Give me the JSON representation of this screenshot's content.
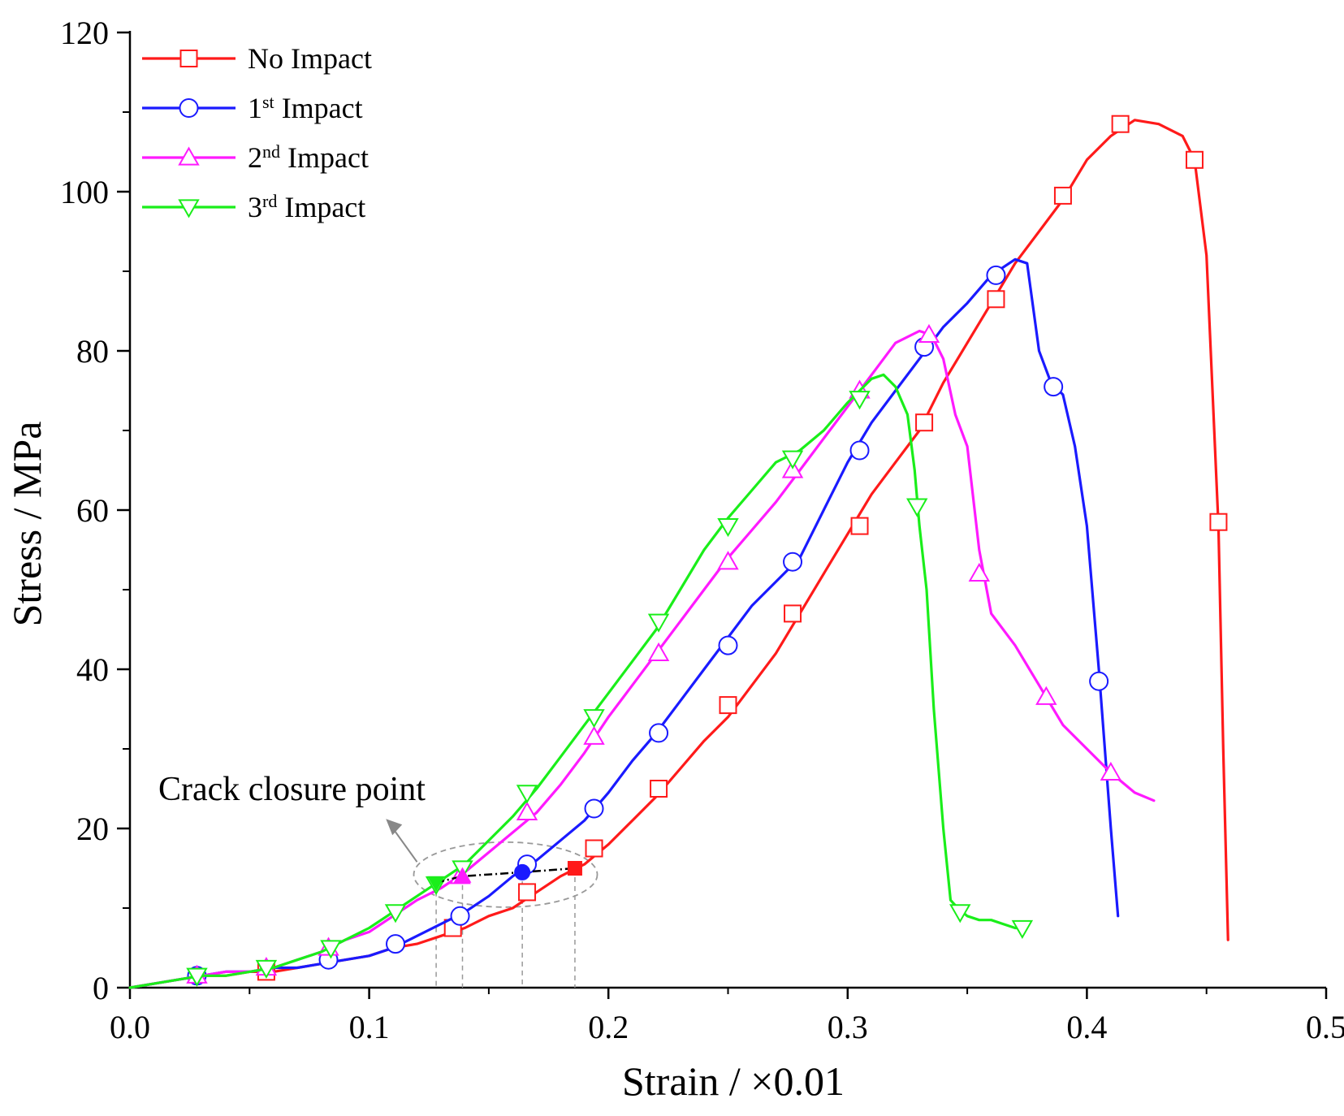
{
  "chart_data": {
    "type": "line",
    "xlabel": "Strain / ×0.01",
    "ylabel": "Stress / MPa",
    "xlim": [
      0,
      0.5
    ],
    "ylim": [
      0,
      120
    ],
    "xticks": [
      0.0,
      0.1,
      0.2,
      0.3,
      0.4,
      0.5
    ],
    "xtick_labels": [
      "0.0",
      "0.1",
      "0.2",
      "0.3",
      "0.4",
      "0.5"
    ],
    "yticks": [
      0,
      20,
      40,
      60,
      80,
      100,
      120
    ],
    "ytick_labels": [
      "0",
      "20",
      "40",
      "60",
      "80",
      "100",
      "120"
    ],
    "legend_position": "top-left",
    "series": [
      {
        "name": "No Impact",
        "legend_label": "No Impact",
        "color": "#ff1a1a",
        "marker": "square",
        "x": [
          0,
          0.01,
          0.02,
          0.03,
          0.04,
          0.05,
          0.06,
          0.07,
          0.08,
          0.09,
          0.1,
          0.11,
          0.12,
          0.13,
          0.14,
          0.15,
          0.16,
          0.17,
          0.18,
          0.19,
          0.2,
          0.21,
          0.22,
          0.23,
          0.24,
          0.25,
          0.26,
          0.27,
          0.28,
          0.29,
          0.3,
          0.31,
          0.32,
          0.33,
          0.34,
          0.35,
          0.36,
          0.37,
          0.38,
          0.39,
          0.4,
          0.41,
          0.42,
          0.43,
          0.44,
          0.445,
          0.45,
          0.455,
          0.457,
          0.459
        ],
        "y": [
          0,
          0.5,
          1,
          1.5,
          1.5,
          2,
          2,
          2.5,
          3,
          3.5,
          4,
          5,
          5.5,
          6.5,
          7.5,
          9,
          10,
          12,
          14,
          15.5,
          18,
          21,
          24,
          27.5,
          31,
          34,
          38,
          42,
          47,
          52,
          57,
          62,
          66,
          70,
          76,
          81,
          86,
          91,
          95,
          99,
          104,
          107,
          109,
          108.5,
          107,
          104,
          92,
          58,
          30,
          6
        ],
        "marker_x": [
          0.057,
          0.135,
          0.166,
          0.194,
          0.221,
          0.25,
          0.277,
          0.305,
          0.332,
          0.362,
          0.39,
          0.414,
          0.445,
          0.455
        ],
        "marker_y": [
          2,
          7.5,
          12,
          17.5,
          25,
          35.5,
          47,
          58,
          71,
          86.5,
          99.5,
          108.5,
          104,
          58.5
        ]
      },
      {
        "name": "1st Impact",
        "legend_label": "1",
        "legend_sup": "st",
        "legend_suffix": " Impact",
        "color": "#1a1aff",
        "marker": "circle",
        "x": [
          0,
          0.01,
          0.02,
          0.03,
          0.04,
          0.05,
          0.06,
          0.07,
          0.08,
          0.09,
          0.1,
          0.11,
          0.12,
          0.13,
          0.14,
          0.15,
          0.16,
          0.17,
          0.18,
          0.19,
          0.2,
          0.21,
          0.22,
          0.23,
          0.24,
          0.25,
          0.26,
          0.27,
          0.28,
          0.29,
          0.3,
          0.31,
          0.32,
          0.33,
          0.34,
          0.35,
          0.36,
          0.37,
          0.375,
          0.38,
          0.385,
          0.39,
          0.395,
          0.4,
          0.405,
          0.41,
          0.413
        ],
        "y": [
          0,
          0.5,
          1,
          1.5,
          2,
          2,
          2.5,
          2.5,
          3,
          3.5,
          4,
          5,
          6.5,
          8,
          9.5,
          11.5,
          14,
          16,
          18.5,
          21,
          24.5,
          28.5,
          32,
          36,
          40,
          44,
          48,
          51,
          54,
          60,
          66,
          71,
          75,
          79,
          83,
          86,
          89.5,
          91.5,
          91,
          80,
          76,
          74.5,
          68,
          58,
          40,
          20,
          9
        ],
        "marker_x": [
          0.028,
          0.083,
          0.111,
          0.138,
          0.166,
          0.194,
          0.221,
          0.25,
          0.277,
          0.305,
          0.332,
          0.362,
          0.386,
          0.405
        ],
        "marker_y": [
          1.5,
          3.5,
          5.5,
          9,
          15.5,
          22.5,
          32,
          43,
          53.5,
          67.5,
          80.5,
          89.5,
          75.5,
          38.5
        ]
      },
      {
        "name": "2nd Impact",
        "legend_label": "2",
        "legend_sup": "nd",
        "legend_suffix": " Impact",
        "color": "#ff1aff",
        "marker": "triangle-up",
        "x": [
          0,
          0.01,
          0.02,
          0.03,
          0.04,
          0.05,
          0.06,
          0.07,
          0.08,
          0.09,
          0.1,
          0.11,
          0.12,
          0.13,
          0.14,
          0.15,
          0.16,
          0.17,
          0.18,
          0.19,
          0.2,
          0.21,
          0.22,
          0.23,
          0.24,
          0.25,
          0.26,
          0.27,
          0.28,
          0.29,
          0.3,
          0.31,
          0.32,
          0.33,
          0.335,
          0.34,
          0.345,
          0.35,
          0.355,
          0.36,
          0.37,
          0.38,
          0.39,
          0.4,
          0.41,
          0.42,
          0.428
        ],
        "y": [
          0,
          0.5,
          1,
          1.5,
          2,
          2,
          2.5,
          3.5,
          4.5,
          6,
          7,
          9,
          11,
          12.5,
          14.5,
          17,
          19.5,
          22,
          25.5,
          29.5,
          34,
          38,
          42,
          46,
          50,
          54,
          57.5,
          61,
          65,
          69,
          73,
          77,
          81,
          82.5,
          82,
          79,
          72,
          68,
          55,
          47,
          43,
          38,
          33,
          30,
          27,
          24.5,
          23.5
        ],
        "marker_x": [
          0.028,
          0.057,
          0.083,
          0.138,
          0.166,
          0.194,
          0.221,
          0.25,
          0.277,
          0.305,
          0.334,
          0.355,
          0.383,
          0.41
        ],
        "marker_y": [
          1.5,
          2.5,
          5,
          14,
          22,
          31.5,
          42,
          53.5,
          65,
          75,
          82,
          52,
          36.5,
          27
        ]
      },
      {
        "name": "3rd Impact",
        "legend_label": "3",
        "legend_sup": "rd",
        "legend_suffix": " Impact",
        "color": "#1aee1a",
        "marker": "triangle-down",
        "x": [
          0,
          0.01,
          0.02,
          0.03,
          0.04,
          0.05,
          0.06,
          0.07,
          0.08,
          0.09,
          0.1,
          0.11,
          0.12,
          0.13,
          0.14,
          0.15,
          0.16,
          0.17,
          0.18,
          0.19,
          0.2,
          0.21,
          0.22,
          0.23,
          0.24,
          0.25,
          0.26,
          0.27,
          0.28,
          0.29,
          0.3,
          0.31,
          0.315,
          0.32,
          0.325,
          0.328,
          0.33,
          0.333,
          0.336,
          0.34,
          0.343,
          0.346,
          0.35,
          0.355,
          0.36,
          0.365,
          0.37,
          0.373
        ],
        "y": [
          0,
          0.5,
          1,
          1.5,
          1.5,
          2,
          2.5,
          3.5,
          4.5,
          6,
          7.5,
          9.5,
          11.5,
          13.5,
          15.5,
          18.5,
          21.5,
          25,
          29,
          33,
          37,
          41,
          45,
          50,
          55,
          59,
          62.5,
          66,
          67.5,
          70,
          73.5,
          76.5,
          77,
          75.5,
          72,
          65,
          58,
          50,
          35,
          20,
          11,
          10,
          9,
          8.5,
          8.5,
          8,
          7.5,
          7.5
        ],
        "marker_x": [
          0.028,
          0.057,
          0.084,
          0.111,
          0.128,
          0.139,
          0.166,
          0.194,
          0.221,
          0.25,
          0.277,
          0.305,
          0.329,
          0.347,
          0.373
        ],
        "marker_y": [
          1.5,
          2.5,
          5,
          9.5,
          13,
          15,
          24.5,
          34,
          46,
          58,
          66.5,
          74,
          60.5,
          9.5,
          7.5
        ]
      }
    ],
    "crack_closure_points": [
      {
        "series": "3rd Impact",
        "x": 0.128,
        "y": 13.2
      },
      {
        "series": "2nd Impact",
        "x": 0.139,
        "y": 14.0
      },
      {
        "series": "1st Impact",
        "x": 0.164,
        "y": 14.5
      },
      {
        "series": "No Impact",
        "x": 0.186,
        "y": 15.0
      }
    ],
    "annotation": {
      "text": "Crack closure point"
    }
  }
}
